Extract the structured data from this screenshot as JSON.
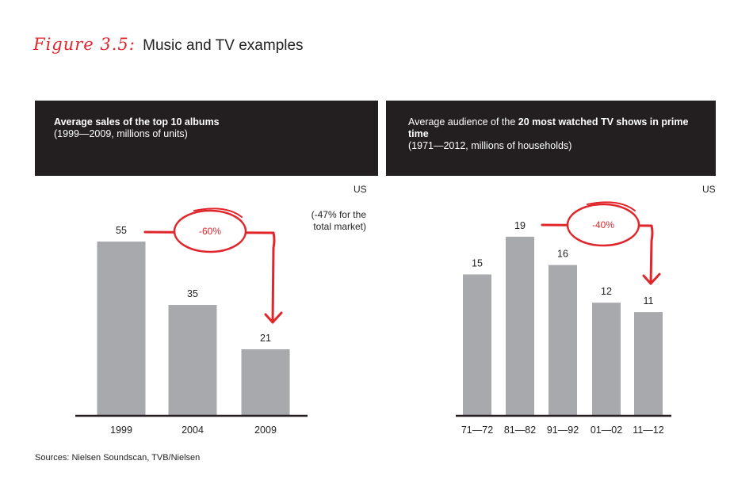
{
  "figure": {
    "label": "Figure 3.5:",
    "title": "Music and TV examples"
  },
  "colors": {
    "accent": "#e0262b",
    "bar": "#a7a9ac",
    "header_bg": "#231f20"
  },
  "source": "Sources: Nielsen Soundscan, TVB/Nielsen",
  "chart_data": [
    {
      "type": "bar",
      "title_pre": "",
      "title_bold": "Average sales of the top 10 albums",
      "title_post": "",
      "subtitle": "(1999—2009, millions of units)",
      "region": "US",
      "note_lines": [
        "(-47% for the",
        "total market)"
      ],
      "categories": [
        "1999",
        "2004",
        "2009"
      ],
      "values": [
        55,
        35,
        21
      ],
      "change_label": "-60%",
      "ylim": [
        0,
        60
      ]
    },
    {
      "type": "bar",
      "title_pre": "Average audience of the ",
      "title_bold": "20 most watched TV shows in prime time",
      "title_post": "",
      "subtitle": "(1971—2012, millions of households)",
      "region": "US",
      "categories": [
        "71—72",
        "81—82",
        "91—92",
        "01—02",
        "11—12"
      ],
      "values": [
        15,
        19,
        16,
        12,
        11
      ],
      "change_label": "-40%",
      "ylim": [
        0,
        20
      ]
    }
  ]
}
